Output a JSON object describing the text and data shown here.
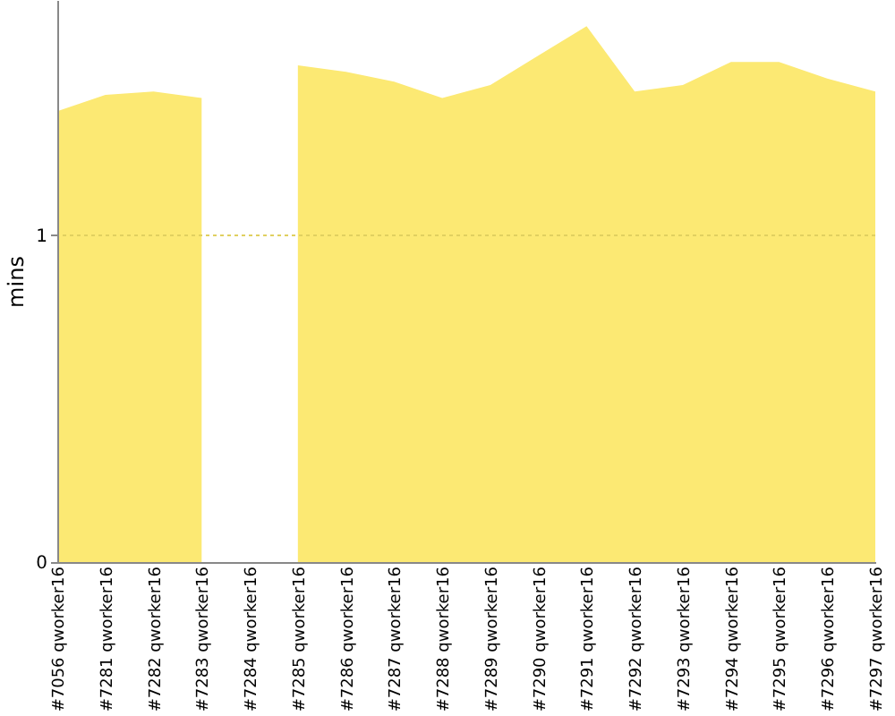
{
  "chart_data": {
    "type": "area",
    "ylabel": "mins",
    "categories": [
      "#7056 qworker16",
      "#7281 qworker16",
      "#7282 qworker16",
      "#7283 qworker16",
      "#7284 qworker16",
      "#7285 qworker16",
      "#7286 qworker16",
      "#7287 qworker16",
      "#7288 qworker16",
      "#7289 qworker16",
      "#7290 qworker16",
      "#7291 qworker16",
      "#7292 qworker16",
      "#7293 qworker16",
      "#7294 qworker16",
      "#7295 qworker16",
      "#7296 qworker16",
      "#7297 qworker16"
    ],
    "series": [
      {
        "color": "#fce973",
        "values": [
          1.38,
          1.43,
          1.44,
          1.42,
          null,
          1.52,
          1.5,
          1.47,
          1.42,
          1.46,
          1.55,
          1.64,
          1.44,
          1.46,
          1.53,
          1.53,
          1.48,
          1.44
        ]
      }
    ],
    "ylim": [
      0,
      1.72
    ],
    "yticks": [
      0,
      1
    ],
    "ref_lines": [
      {
        "axis": "y",
        "value": 1,
        "color": "#e0d060",
        "line_style": "dotted"
      }
    ]
  }
}
